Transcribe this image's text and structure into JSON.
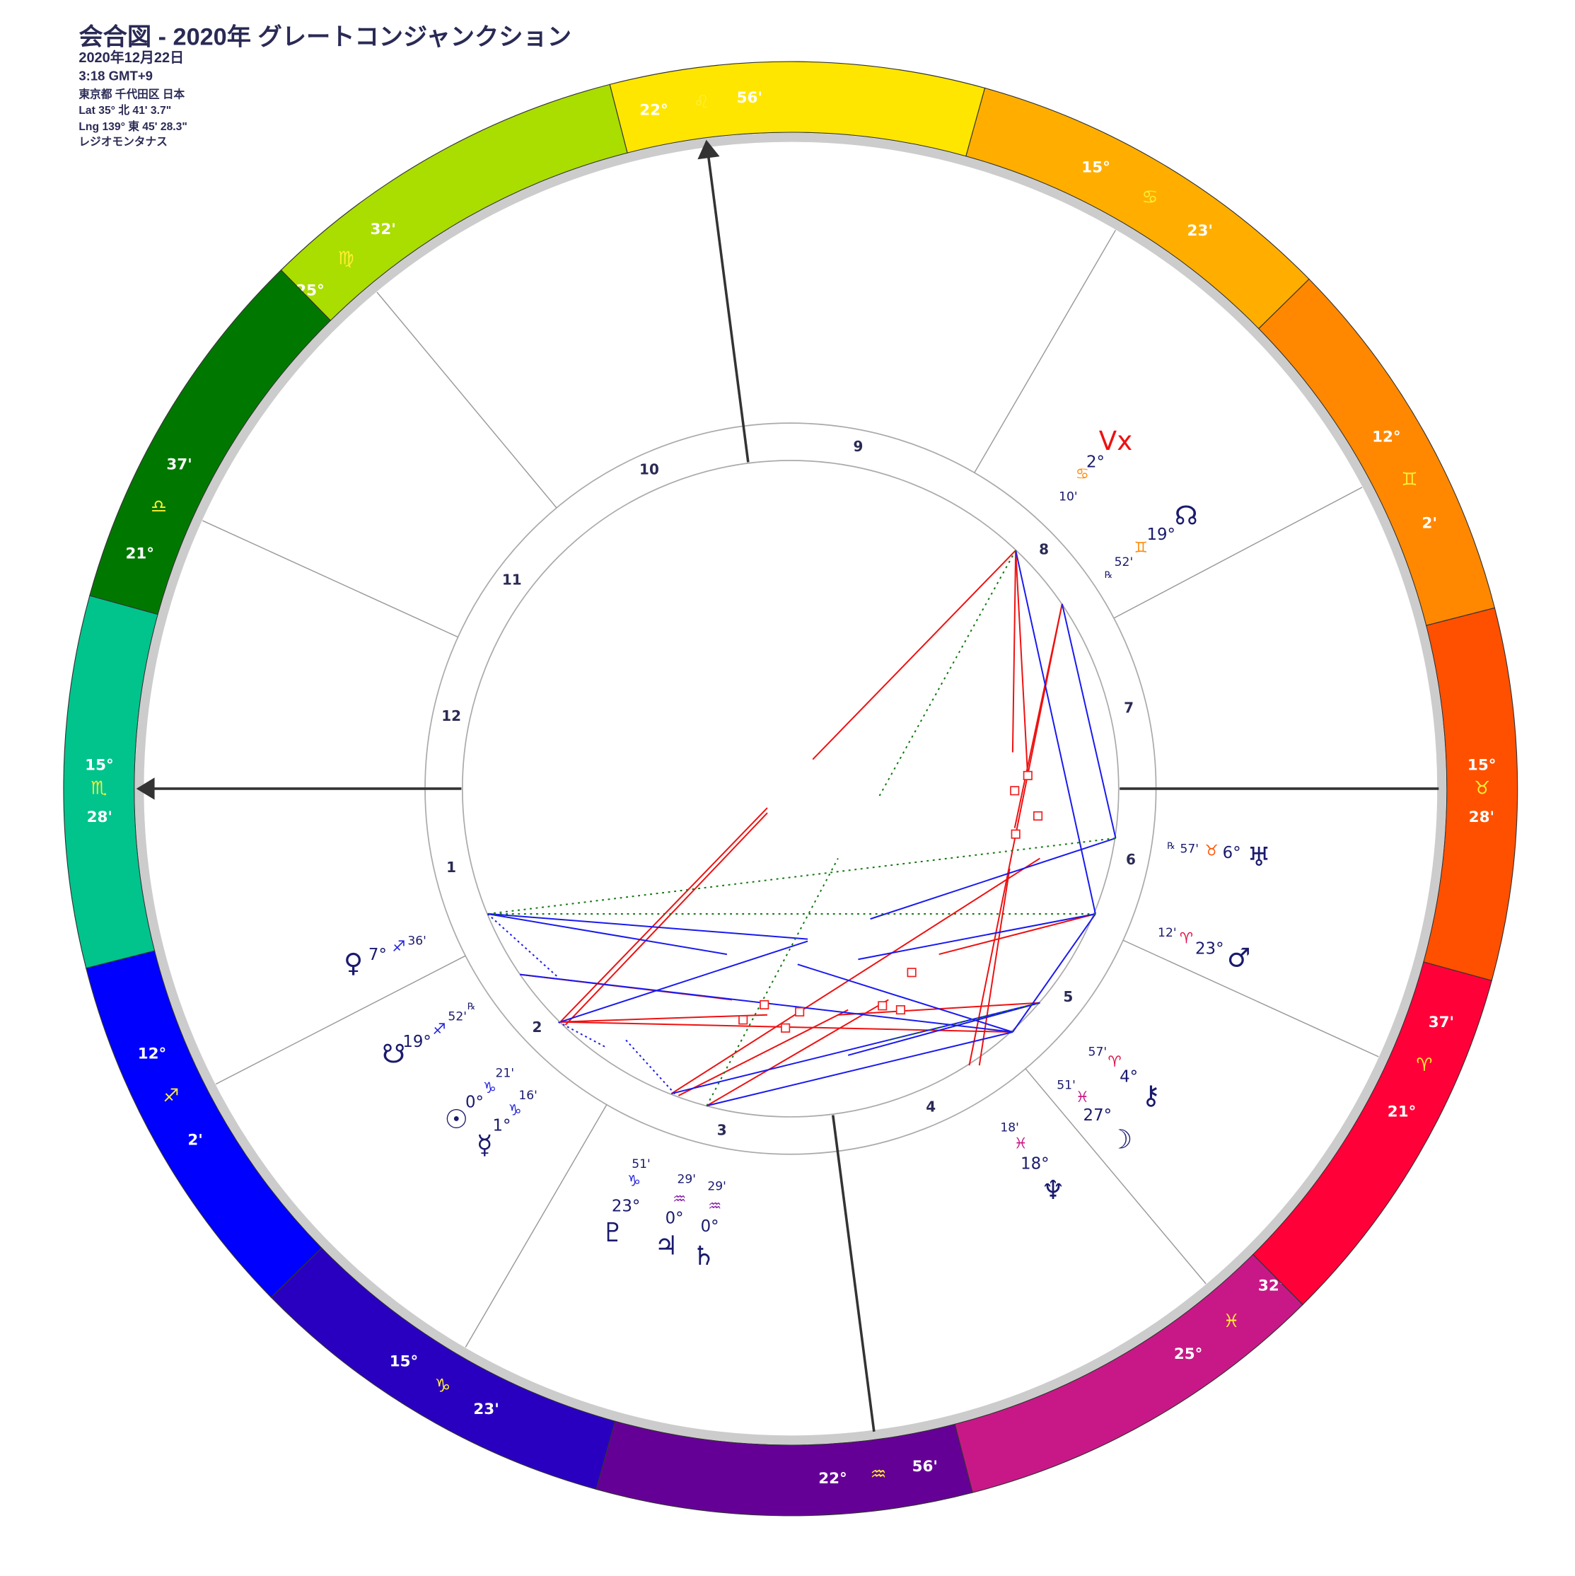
{
  "header": {
    "title": "会合図 - 2020年 グレートコンジャンクション",
    "date": "2020年12月22日",
    "time": "3:18 GMT+9",
    "place": "東京都 千代田区 日本",
    "lat": "Lat 35° 北 41' 3.7\"",
    "lng": "Lng 139° 東 45' 28.3\"",
    "system": "レジオモンタナス"
  },
  "cusps": [
    {
      "degree": "15°",
      "sign": "♏",
      "minutes": "28'"
    },
    {
      "degree": "12°",
      "sign": "♐",
      "minutes": "2'"
    },
    {
      "degree": "15°",
      "sign": "♑",
      "minutes": "23'"
    },
    {
      "degree": "22°",
      "sign": "♒",
      "minutes": "56'"
    },
    {
      "degree": "25°",
      "sign": "♓",
      "minutes": "32'"
    },
    {
      "degree": "21°",
      "sign": "♈",
      "minutes": "37'"
    },
    {
      "degree": "15°",
      "sign": "♉",
      "minutes": "28'"
    },
    {
      "degree": "12°",
      "sign": "♊",
      "minutes": "2'"
    },
    {
      "degree": "15°",
      "sign": "♋",
      "minutes": "23'"
    },
    {
      "degree": "22°",
      "sign": "♌",
      "minutes": "56'"
    },
    {
      "degree": "25°",
      "sign": "♍",
      "minutes": "32'"
    },
    {
      "degree": "21°",
      "sign": "♎",
      "minutes": "37'"
    }
  ],
  "houses": [
    1,
    2,
    3,
    4,
    5,
    6,
    7,
    8,
    9,
    10,
    11,
    12
  ],
  "planets": [
    {
      "glyph": "Vx",
      "degree": "2°",
      "sign": "♋",
      "minutes": "10'"
    },
    {
      "glyph": "☊",
      "degree": "19°",
      "sign": "♊",
      "minutes": "52'",
      "retrograde": "℞"
    },
    {
      "glyph": "♅",
      "degree": "6°",
      "sign": "♉",
      "minutes": "57'",
      "retrograde": "℞"
    },
    {
      "glyph": "♂",
      "degree": "23°",
      "sign": "♈",
      "minutes": "12'"
    },
    {
      "glyph": "⚷",
      "degree": "4°",
      "sign": "♈",
      "minutes": "57'"
    },
    {
      "glyph": "☽",
      "degree": "27°",
      "sign": "♓",
      "minutes": "51'"
    },
    {
      "glyph": "♆",
      "degree": "18°",
      "sign": "♓",
      "minutes": "18'"
    },
    {
      "glyph": "♄",
      "degree": "0°",
      "sign": "♒",
      "minutes": "29'"
    },
    {
      "glyph": "♃",
      "degree": "0°",
      "sign": "♒",
      "minutes": "29'"
    },
    {
      "glyph": "♇",
      "degree": "23°",
      "sign": "♑",
      "minutes": "51'"
    },
    {
      "glyph": "☿",
      "degree": "1°",
      "sign": "♑",
      "minutes": "16'"
    },
    {
      "glyph": "☉",
      "degree": "0°",
      "sign": "♑",
      "minutes": "21'"
    },
    {
      "glyph": "☋",
      "degree": "19°",
      "sign": "♐",
      "minutes": "52'",
      "retrograde": "℞"
    },
    {
      "glyph": "♀",
      "degree": "7°",
      "sign": "♐",
      "minutes": "36'"
    }
  ]
}
